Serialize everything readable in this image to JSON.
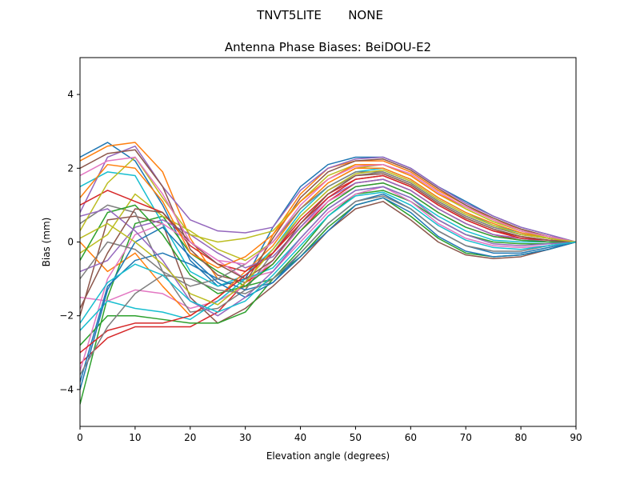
{
  "chart_data": {
    "type": "line",
    "suptitle": "TNVT5LITE       NONE",
    "title": "Antenna Phase Biases: BeiDOU-E2",
    "xlabel": "Elevation angle (degrees)",
    "ylabel": "Bias (mm)",
    "xlim": [
      0,
      90
    ],
    "ylim": [
      -5,
      5
    ],
    "xticks": [
      0,
      10,
      20,
      30,
      40,
      50,
      60,
      70,
      80,
      90
    ],
    "yticks": [
      -4,
      -2,
      0,
      2,
      4
    ],
    "grid": false,
    "colors": [
      "#1f77b4",
      "#ff7f0e",
      "#2ca02c",
      "#d62728",
      "#9467bd",
      "#8c564b",
      "#e377c2",
      "#7f7f7f",
      "#bcbd22",
      "#17becf"
    ],
    "x": [
      0,
      5,
      10,
      15,
      20,
      25,
      30,
      35,
      40,
      45,
      50,
      55,
      60,
      65,
      70,
      75,
      80,
      85,
      90
    ],
    "series": [
      {
        "values": [
          2.3,
          2.7,
          2.2,
          1.0,
          -0.5,
          -1.2,
          -1.0,
          0.4,
          1.5,
          2.1,
          2.3,
          2.3,
          2.0,
          1.5,
          1.1,
          0.7,
          0.4,
          0.2,
          0
        ]
      },
      {
        "values": [
          2.2,
          2.6,
          2.7,
          1.9,
          0.1,
          -1.0,
          -1.3,
          0.2,
          1.3,
          2.0,
          2.2,
          2.2,
          1.9,
          1.4,
          1.0,
          0.6,
          0.35,
          0.15,
          0
        ]
      },
      {
        "values": [
          -4.4,
          -1.5,
          0.5,
          0.7,
          -0.3,
          -0.8,
          -1.2,
          -1.0,
          -0.4,
          0.4,
          1.0,
          1.2,
          0.7,
          0.1,
          -0.3,
          -0.4,
          -0.35,
          -0.2,
          0
        ]
      },
      {
        "values": [
          -3.3,
          -2.6,
          -2.3,
          -2.3,
          -2.3,
          -1.9,
          -1.1,
          -0.6,
          0.3,
          1.1,
          1.6,
          1.7,
          1.4,
          0.9,
          0.5,
          0.2,
          0.05,
          0,
          0
        ]
      },
      {
        "values": [
          0.8,
          2.3,
          2.6,
          1.5,
          0.6,
          0.3,
          0.25,
          0.4,
          1.4,
          2.0,
          2.25,
          2.3,
          2.0,
          1.5,
          1.05,
          0.7,
          0.4,
          0.2,
          0
        ]
      },
      {
        "values": [
          -2.0,
          0.6,
          0.7,
          0.5,
          -1.5,
          -2.2,
          -1.8,
          -1.2,
          -0.5,
          0.3,
          0.9,
          1.1,
          0.6,
          0.0,
          -0.35,
          -0.45,
          -0.4,
          -0.2,
          0
        ]
      },
      {
        "values": [
          -1.5,
          -1.6,
          -1.3,
          -1.4,
          -1.8,
          -1.6,
          -1.2,
          -0.5,
          0.4,
          1.1,
          1.5,
          1.6,
          1.3,
          0.8,
          0.4,
          0.15,
          0.05,
          0,
          0
        ]
      },
      {
        "values": [
          0.5,
          1.0,
          0.8,
          -0.8,
          -1.9,
          -1.8,
          -1.3,
          -0.3,
          0.7,
          1.4,
          1.8,
          1.9,
          1.6,
          1.1,
          0.7,
          0.4,
          0.2,
          0.1,
          0
        ]
      },
      {
        "values": [
          -0.3,
          0.2,
          1.3,
          0.7,
          0.3,
          -0.2,
          -0.5,
          0.0,
          0.9,
          1.6,
          2.0,
          2.1,
          1.8,
          1.3,
          0.9,
          0.55,
          0.3,
          0.15,
          0
        ]
      },
      {
        "values": [
          1.5,
          1.9,
          1.8,
          0.5,
          -0.8,
          -1.2,
          -0.9,
          -0.2,
          0.8,
          1.5,
          1.9,
          2.0,
          1.7,
          1.2,
          0.8,
          0.45,
          0.25,
          0.1,
          0
        ]
      },
      {
        "values": [
          -3.8,
          -1.2,
          -0.5,
          -0.3,
          -0.6,
          -1.0,
          -1.3,
          -1.1,
          -0.3,
          0.5,
          1.1,
          1.3,
          0.9,
          0.3,
          -0.1,
          -0.3,
          -0.3,
          -0.15,
          0
        ]
      },
      {
        "values": [
          0.0,
          -0.8,
          -0.3,
          -1.2,
          -2.0,
          -1.5,
          -0.8,
          -0.1,
          0.9,
          1.6,
          2.0,
          2.0,
          1.7,
          1.2,
          0.8,
          0.5,
          0.25,
          0.1,
          0
        ]
      },
      {
        "values": [
          -2.8,
          -2.0,
          -2.0,
          -2.1,
          -2.2,
          -2.2,
          -1.9,
          -1.0,
          -0.2,
          0.7,
          1.3,
          1.4,
          1.1,
          0.6,
          0.2,
          0.0,
          -0.05,
          -0.05,
          0
        ]
      },
      {
        "values": [
          1.0,
          1.4,
          1.1,
          0.8,
          -0.1,
          -0.6,
          -0.8,
          -0.3,
          0.6,
          1.3,
          1.7,
          1.8,
          1.5,
          1.0,
          0.6,
          0.3,
          0.15,
          0.05,
          0
        ]
      },
      {
        "values": [
          -0.8,
          -0.5,
          0.4,
          0.6,
          0.2,
          -0.3,
          -0.7,
          -0.4,
          0.4,
          1.2,
          1.6,
          1.7,
          1.4,
          0.9,
          0.5,
          0.2,
          0.1,
          0,
          0
        ]
      },
      {
        "values": [
          2.0,
          2.4,
          2.5,
          1.5,
          -0.2,
          -0.9,
          -1.1,
          0.1,
          1.2,
          1.9,
          2.2,
          2.25,
          1.95,
          1.45,
          1.0,
          0.65,
          0.35,
          0.15,
          0
        ]
      },
      {
        "values": [
          -3.5,
          -1.0,
          0.2,
          0.5,
          0.0,
          -0.5,
          -1.0,
          -0.8,
          0.0,
          0.8,
          1.3,
          1.5,
          1.1,
          0.5,
          0.1,
          -0.1,
          -0.15,
          -0.1,
          0
        ]
      },
      {
        "values": [
          -1.0,
          0.0,
          -0.2,
          -0.8,
          -1.2,
          -1.0,
          -0.6,
          0.0,
          0.9,
          1.5,
          1.9,
          1.9,
          1.6,
          1.1,
          0.7,
          0.4,
          0.2,
          0.1,
          0
        ]
      },
      {
        "values": [
          0.3,
          1.6,
          2.3,
          1.2,
          0.2,
          0.0,
          0.1,
          0.3,
          1.1,
          1.8,
          2.1,
          2.1,
          1.8,
          1.3,
          0.9,
          0.55,
          0.3,
          0.1,
          0
        ]
      },
      {
        "values": [
          -2.4,
          -1.6,
          -1.8,
          -1.9,
          -2.1,
          -1.6,
          -1.0,
          -0.7,
          0.1,
          0.9,
          1.4,
          1.5,
          1.2,
          0.7,
          0.3,
          0.05,
          0,
          0,
          0
        ]
      },
      {
        "values": [
          -4.0,
          -1.3,
          0.0,
          0.4,
          -0.4,
          -1.1,
          -1.5,
          -1.1,
          -0.4,
          0.3,
          1.0,
          1.2,
          0.8,
          0.15,
          -0.25,
          -0.4,
          -0.35,
          -0.2,
          0
        ]
      },
      {
        "values": [
          1.2,
          2.1,
          2.0,
          1.1,
          -0.3,
          -0.7,
          -0.4,
          0.2,
          1.1,
          1.7,
          2.1,
          2.1,
          1.8,
          1.3,
          0.95,
          0.6,
          0.3,
          0.15,
          0
        ]
      },
      {
        "values": [
          -0.5,
          0.8,
          1.0,
          0.2,
          -0.9,
          -1.4,
          -1.2,
          -0.6,
          0.3,
          1.0,
          1.5,
          1.6,
          1.3,
          0.8,
          0.4,
          0.15,
          0.05,
          0,
          0
        ]
      },
      {
        "values": [
          -3.0,
          -2.4,
          -2.2,
          -2.2,
          -2.0,
          -1.5,
          -0.9,
          -0.3,
          0.5,
          1.2,
          1.7,
          1.8,
          1.5,
          1.0,
          0.6,
          0.3,
          0.1,
          0.05,
          0
        ]
      },
      {
        "values": [
          0.7,
          0.9,
          0.3,
          -0.5,
          -1.6,
          -2.0,
          -1.5,
          -0.8,
          0.1,
          0.9,
          1.4,
          1.5,
          1.2,
          0.6,
          0.2,
          -0.05,
          -0.1,
          -0.05,
          0
        ]
      },
      {
        "values": [
          -1.8,
          -0.3,
          0.9,
          0.8,
          0.0,
          -0.6,
          -1.0,
          -0.5,
          0.5,
          1.3,
          1.8,
          1.85,
          1.55,
          1.05,
          0.65,
          0.35,
          0.15,
          0.05,
          0
        ]
      },
      {
        "values": [
          1.8,
          2.2,
          2.3,
          1.3,
          0.0,
          -0.5,
          -0.6,
          0.0,
          1.0,
          1.7,
          2.05,
          2.1,
          1.85,
          1.35,
          0.95,
          0.6,
          0.3,
          0.15,
          0
        ]
      },
      {
        "values": [
          -3.6,
          -2.3,
          -1.4,
          -0.9,
          -1.0,
          -1.3,
          -1.4,
          -1.0,
          -0.3,
          0.5,
          1.1,
          1.25,
          0.9,
          0.3,
          -0.1,
          -0.25,
          -0.25,
          -0.1,
          0
        ]
      },
      {
        "values": [
          0.1,
          0.5,
          0.0,
          -0.6,
          -1.4,
          -1.7,
          -1.1,
          -0.2,
          0.7,
          1.4,
          1.85,
          1.95,
          1.65,
          1.15,
          0.75,
          0.45,
          0.2,
          0.1,
          0
        ]
      },
      {
        "values": [
          -2.2,
          -1.1,
          -0.6,
          -0.9,
          -1.6,
          -1.9,
          -1.6,
          -0.9,
          -0.1,
          0.7,
          1.25,
          1.35,
          1.0,
          0.45,
          0.05,
          -0.15,
          -0.2,
          -0.1,
          0
        ]
      }
    ]
  }
}
